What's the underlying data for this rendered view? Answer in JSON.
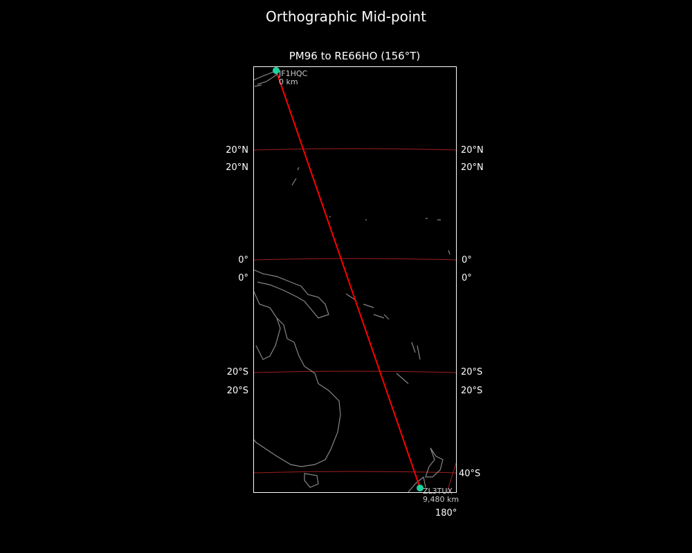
{
  "figure": {
    "title": "Orthographic Mid-point"
  },
  "map": {
    "title": "PM96 to RE66HO (156°T)",
    "projection": "orthographic",
    "background": "#000000",
    "coastline_color": "#888888",
    "gridline_color": "#a02020",
    "path_color": "#ff0000",
    "marker_color": "#20d0a0",
    "lat_labels": {
      "n20": "20°N",
      "eq": "0°",
      "s20": "20°S",
      "s40": "40°S"
    },
    "lon_labels": {
      "e180": "180°"
    },
    "start": {
      "call": "JF1HQC",
      "distance": "0 km"
    },
    "end": {
      "call": "ZL3TUX",
      "distance": "9,480 km"
    }
  }
}
